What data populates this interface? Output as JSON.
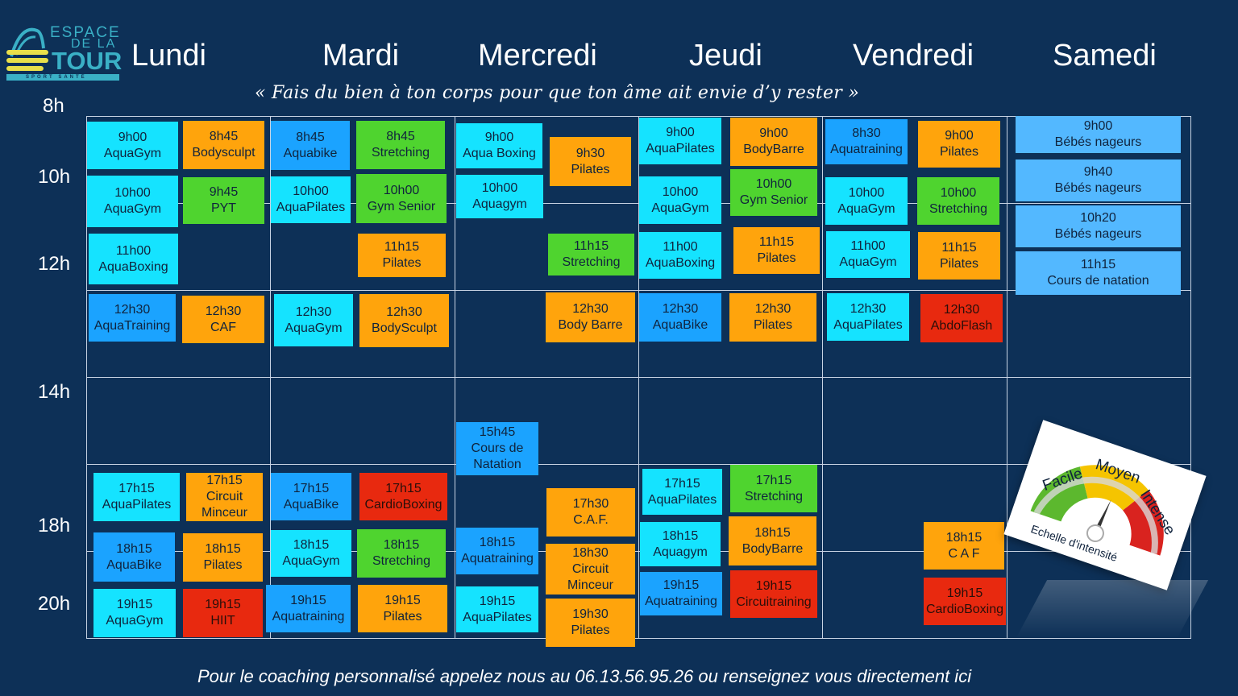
{
  "logo": {
    "line1": "ESPACE",
    "line2": "DE LA",
    "line3": "TOUR",
    "tagline": "SPORT SANTÉ"
  },
  "days": [
    "Lundi",
    "Mardi",
    "Mercredi",
    "Jeudi",
    "Vendredi",
    "Samedi"
  ],
  "hours": [
    "8h",
    "10h",
    "12h",
    "14h",
    "18h",
    "20h"
  ],
  "quote": "« Fais du bien à ton corps pour que ton âme ait envie d’y rester »",
  "classes": [
    {
      "time": "9h00",
      "name": "AquaGym",
      "color": "cyan"
    },
    {
      "time": "8h45",
      "name": "Bodysculpt",
      "color": "orange"
    },
    {
      "time": "10h00",
      "name": "AquaGym",
      "color": "cyan"
    },
    {
      "time": "9h45",
      "name": "PYT",
      "color": "green"
    },
    {
      "time": "11h00",
      "name": "AquaBoxing",
      "color": "cyan"
    },
    {
      "time": "12h30",
      "name": "AquaTraining",
      "color": "blue"
    },
    {
      "time": "12h30",
      "name": "CAF",
      "color": "orange"
    },
    {
      "time": "17h15",
      "name": "AquaPilates",
      "color": "cyan"
    },
    {
      "time": "17h15",
      "name": "Circuit",
      "name2": "Minceur",
      "color": "orange"
    },
    {
      "time": "18h15",
      "name": "AquaBike",
      "color": "blue"
    },
    {
      "time": "18h15",
      "name": "Pilates",
      "color": "orange"
    },
    {
      "time": "19h15",
      "name": "AquaGym",
      "color": "cyan"
    },
    {
      "time": "19h15",
      "name": "HIIT",
      "color": "red"
    },
    {
      "time": "8h45",
      "name": "Aquabike",
      "color": "blue"
    },
    {
      "time": "8h45",
      "name": "Stretching",
      "color": "green"
    },
    {
      "time": "10h00",
      "name": "AquaPilates",
      "color": "cyan"
    },
    {
      "time": "10h00",
      "name": "Gym Senior",
      "color": "green"
    },
    {
      "time": "11h15",
      "name": "Pilates",
      "color": "orange"
    },
    {
      "time": "12h30",
      "name": "AquaGym",
      "color": "cyan"
    },
    {
      "time": "12h30",
      "name": "BodySculpt",
      "color": "orange"
    },
    {
      "time": "17h15",
      "name": "AquaBike",
      "color": "blue"
    },
    {
      "time": "17h15",
      "name": "CardioBoxing",
      "color": "red"
    },
    {
      "time": "18h15",
      "name": "AquaGym",
      "color": "cyan"
    },
    {
      "time": "18h15",
      "name": "Stretching",
      "color": "green"
    },
    {
      "time": "19h15",
      "name": "Aquatraining",
      "color": "blue"
    },
    {
      "time": "19h15",
      "name": "Pilates",
      "color": "orange"
    },
    {
      "time": "9h00",
      "name": "Aqua Boxing",
      "color": "cyan"
    },
    {
      "time": "9h30",
      "name": "Pilates",
      "color": "orange"
    },
    {
      "time": "10h00",
      "name": "Aquagym",
      "color": "cyan"
    },
    {
      "time": "11h15",
      "name": "Stretching",
      "color": "green"
    },
    {
      "time": "12h30",
      "name": "Body Barre",
      "color": "orange"
    },
    {
      "time": "15h45",
      "name": "Cours de",
      "name2": "Natation",
      "color": "blue"
    },
    {
      "time": "17h30",
      "name": "C.A.F.",
      "color": "orange"
    },
    {
      "time": "18h15",
      "name": "Aquatraining",
      "color": "blue"
    },
    {
      "time": "18h30",
      "name": "Circuit",
      "name2": "Minceur",
      "color": "orange"
    },
    {
      "time": "19h15",
      "name": "AquaPilates",
      "color": "cyan"
    },
    {
      "time": "19h30",
      "name": "Pilates",
      "color": "orange"
    },
    {
      "time": "9h00",
      "name": "AquaPilates",
      "color": "cyan"
    },
    {
      "time": "9h00",
      "name": "BodyBarre",
      "color": "orange"
    },
    {
      "time": "10h00",
      "name": "AquaGym",
      "color": "cyan"
    },
    {
      "time": "10h00",
      "name": "Gym Senior",
      "color": "green"
    },
    {
      "time": "11h00",
      "name": "AquaBoxing",
      "color": "cyan"
    },
    {
      "time": "11h15",
      "name": "Pilates",
      "color": "orange"
    },
    {
      "time": "12h30",
      "name": "AquaBike",
      "color": "blue"
    },
    {
      "time": "12h30",
      "name": "Pilates",
      "color": "orange"
    },
    {
      "time": "17h15",
      "name": "AquaPilates",
      "color": "cyan"
    },
    {
      "time": "17h15",
      "name": "Stretching",
      "color": "green"
    },
    {
      "time": "18h15",
      "name": "Aquagym",
      "color": "cyan"
    },
    {
      "time": "18h15",
      "name": "BodyBarre",
      "color": "orange"
    },
    {
      "time": "19h15",
      "name": "Aquatraining",
      "color": "blue"
    },
    {
      "time": "19h15",
      "name": "Circuitraining",
      "color": "red"
    },
    {
      "time": "8h30",
      "name": "Aquatraining",
      "color": "blue"
    },
    {
      "time": "9h00",
      "name": "Pilates",
      "color": "orange"
    },
    {
      "time": "10h00",
      "name": "AquaGym",
      "color": "cyan"
    },
    {
      "time": "10h00",
      "name": "Stretching",
      "color": "green"
    },
    {
      "time": "11h00",
      "name": "AquaGym",
      "color": "cyan"
    },
    {
      "time": "11h15",
      "name": "Pilates",
      "color": "orange"
    },
    {
      "time": "12h30",
      "name": "AquaPilates",
      "color": "cyan"
    },
    {
      "time": "12h30",
      "name": "AbdoFlash",
      "color": "red"
    },
    {
      "time": "18h15",
      "name": "C A F",
      "color": "orange"
    },
    {
      "time": "19h15",
      "name": "CardioBoxing",
      "color": "red"
    },
    {
      "time": "9h00",
      "name": "Bébés nageurs",
      "color": "lightblue"
    },
    {
      "time": "9h40",
      "name": "Bébés nageurs",
      "color": "lightblue"
    },
    {
      "time": "10h20",
      "name": "Bébés nageurs",
      "color": "lightblue"
    },
    {
      "time": "11h15",
      "name": "Cours de natation",
      "color": "lightblue"
    }
  ],
  "gauge": {
    "easy": "Facile",
    "medium": "Moyen",
    "hard": "Intense",
    "caption": "Echelle d'intensité",
    "colors": {
      "easy": "#5cb82e",
      "medium": "#f5c400",
      "hard": "#d9231f"
    }
  },
  "footer": "Pour le coaching personnalisé appelez nous au 06.13.56.95.26 ou renseignez vous directement ici"
}
